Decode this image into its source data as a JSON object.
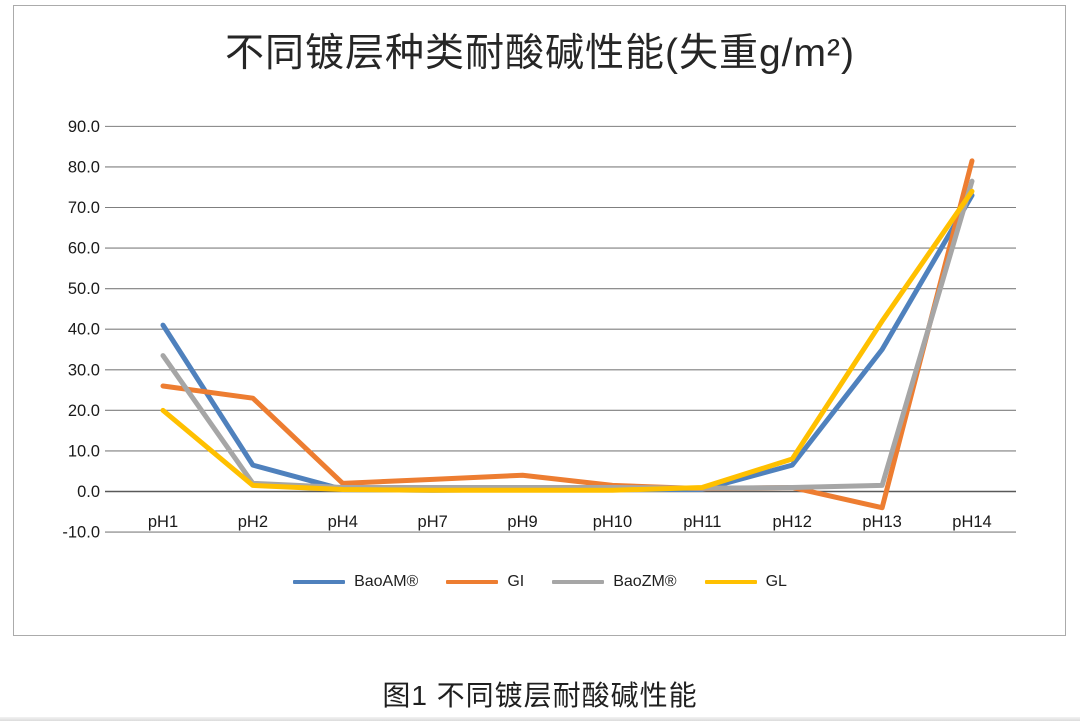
{
  "page": {
    "caption": "图1 不同镀层耐酸碱性能"
  },
  "chart_data": {
    "type": "line",
    "title": "不同镀层种类耐酸碱性能(失重g/m²)",
    "xlabel": "",
    "ylabel": "",
    "categories": [
      "pH1",
      "pH2",
      "pH4",
      "pH7",
      "pH9",
      "pH10",
      "pH11",
      "pH12",
      "pH13",
      "pH14"
    ],
    "y_ticks": [
      "90.0",
      "80.0",
      "70.0",
      "60.0",
      "50.0",
      "40.0",
      "30.0",
      "20.0",
      "10.0",
      "0.0",
      "-10.0"
    ],
    "ylim": [
      -10,
      90
    ],
    "y_step": 10,
    "grid": true,
    "legend_position": "bottom",
    "series": [
      {
        "name": "BaoAM®",
        "color": "#4F81BD",
        "values": [
          41.0,
          6.5,
          0.5,
          0.3,
          0.5,
          0.5,
          0.5,
          6.5,
          35.0,
          73.0
        ]
      },
      {
        "name": "GI",
        "color": "#ED7D31",
        "values": [
          26.0,
          23.0,
          2.0,
          3.0,
          4.0,
          1.5,
          0.7,
          1.0,
          -4.0,
          81.5
        ]
      },
      {
        "name": "BaoZM®",
        "color": "#A6A6A6",
        "values": [
          33.5,
          2.0,
          1.0,
          1.0,
          1.0,
          1.0,
          0.8,
          1.0,
          1.5,
          76.5
        ]
      },
      {
        "name": "GL",
        "color": "#FFC000",
        "values": [
          20.0,
          1.5,
          0.5,
          0.3,
          0.3,
          0.3,
          1.0,
          8.0,
          42.0,
          74.0
        ]
      }
    ],
    "colors": {
      "gridline": "#7f7f7f",
      "zero_axis": "#595959",
      "tick_text": "#1a1a1a"
    }
  }
}
